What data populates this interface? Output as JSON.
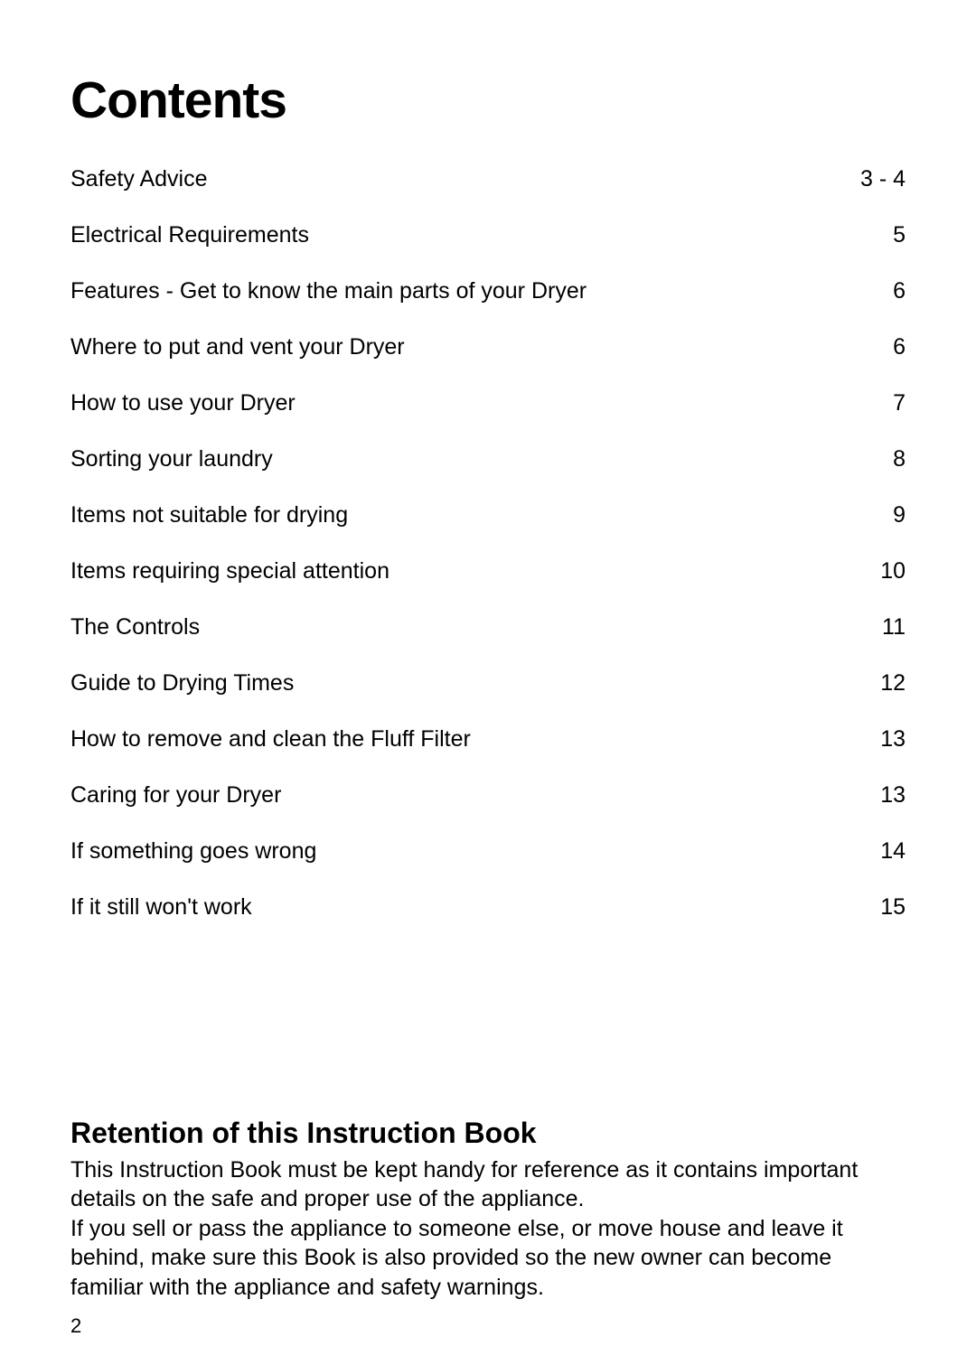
{
  "title": "Contents",
  "toc": [
    {
      "label": "Safety Advice",
      "page": "3 - 4"
    },
    {
      "label": "Electrical Requirements",
      "page": "5"
    },
    {
      "label": "Features - Get to know the main parts of your Dryer",
      "page": "6"
    },
    {
      "label": "Where to put and vent your Dryer",
      "page": "6"
    },
    {
      "label": "How to use your Dryer",
      "page": "7"
    },
    {
      "label": "Sorting your laundry",
      "page": "8"
    },
    {
      "label": "Items not suitable for drying",
      "page": "9"
    },
    {
      "label": "Items requiring special attention",
      "page": "10"
    },
    {
      "label": "The Controls",
      "page": "11"
    },
    {
      "label": "Guide to Drying Times",
      "page": "12"
    },
    {
      "label": "How to remove and clean the Fluff Filter",
      "page": "13"
    },
    {
      "label": "Caring for your Dryer",
      "page": "13"
    },
    {
      "label": "If something goes wrong",
      "page": "14"
    },
    {
      "label": "If it still won't work",
      "page": "15"
    }
  ],
  "retention": {
    "title": "Retention of this Instruction Book",
    "body": "This Instruction Book must be kept handy for reference as it contains important details on the safe and proper use of the appliance.\nIf you sell or pass the appliance to someone else, or move house and leave it behind, make sure this Book is also provided so the new owner can become familiar with the appliance and safety warnings."
  },
  "page_number": "2",
  "styles": {
    "background_color": "#ffffff",
    "text_color": "#000000",
    "title_fontsize": 57,
    "toc_fontsize": 25,
    "retention_title_fontsize": 32,
    "retention_body_fontsize": 25,
    "page_number_fontsize": 22
  }
}
